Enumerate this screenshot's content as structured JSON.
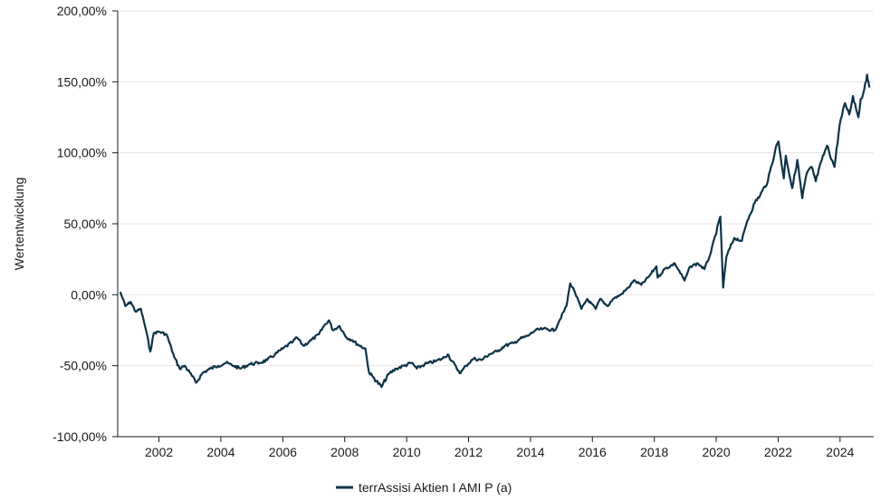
{
  "chart_data": {
    "type": "line",
    "title": "",
    "xlabel": "",
    "ylabel": "Wertentwicklung",
    "y_unit": "%",
    "ylim": [
      -100,
      200
    ],
    "xlim": [
      "2000-09-01",
      "2025-02-01"
    ],
    "y_ticks": [
      -100,
      -50,
      0,
      50,
      100,
      150,
      200
    ],
    "y_tick_labels": [
      "-100,00%",
      "-50,00%",
      "0,00%",
      "50,00%",
      "100,00%",
      "150,00%",
      "200,00%"
    ],
    "x_ticks": [
      "2002-01-01",
      "2004-01-01",
      "2006-01-01",
      "2008-01-01",
      "2010-01-01",
      "2012-01-01",
      "2014-01-01",
      "2016-01-01",
      "2018-01-01",
      "2020-01-01",
      "2022-01-01",
      "2024-01-01"
    ],
    "x_tick_labels": [
      "2002",
      "2004",
      "2006",
      "2008",
      "2010",
      "2012",
      "2014",
      "2016",
      "2018",
      "2020",
      "2022",
      "2024"
    ],
    "grid": "horizontal",
    "legend_position": "bottom-center",
    "series": [
      {
        "name": "terrAssisi Aktien I AMI P (a)",
        "color": "#0d3347",
        "points": [
          [
            "2000-10-01",
            2
          ],
          [
            "2000-12-01",
            -8
          ],
          [
            "2001-02-01",
            -5
          ],
          [
            "2001-04-01",
            -12
          ],
          [
            "2001-06-01",
            -10
          ],
          [
            "2001-08-01",
            -25
          ],
          [
            "2001-09-20",
            -40
          ],
          [
            "2001-11-01",
            -27
          ],
          [
            "2002-01-01",
            -26
          ],
          [
            "2002-04-01",
            -28
          ],
          [
            "2002-07-01",
            -44
          ],
          [
            "2002-09-01",
            -52
          ],
          [
            "2002-11-01",
            -50
          ],
          [
            "2003-01-01",
            -55
          ],
          [
            "2003-03-15",
            -62
          ],
          [
            "2003-06-01",
            -55
          ],
          [
            "2003-09-01",
            -52
          ],
          [
            "2003-12-01",
            -50
          ],
          [
            "2004-03-01",
            -48
          ],
          [
            "2004-06-01",
            -50
          ],
          [
            "2004-08-15",
            -52
          ],
          [
            "2004-12-01",
            -49
          ],
          [
            "2005-04-01",
            -48
          ],
          [
            "2005-07-01",
            -46
          ],
          [
            "2005-10-01",
            -42
          ],
          [
            "2006-01-01",
            -38
          ],
          [
            "2006-05-01",
            -33
          ],
          [
            "2006-06-15",
            -30
          ],
          [
            "2006-09-01",
            -36
          ],
          [
            "2006-12-01",
            -32
          ],
          [
            "2007-03-01",
            -28
          ],
          [
            "2007-05-01",
            -22
          ],
          [
            "2007-07-01",
            -18
          ],
          [
            "2007-08-15",
            -25
          ],
          [
            "2007-11-01",
            -22
          ],
          [
            "2008-01-20",
            -30
          ],
          [
            "2008-04-01",
            -32
          ],
          [
            "2008-06-01",
            -35
          ],
          [
            "2008-09-01",
            -38
          ],
          [
            "2008-10-15",
            -55
          ],
          [
            "2008-12-01",
            -58
          ],
          [
            "2009-03-09",
            -65
          ],
          [
            "2009-06-01",
            -56
          ],
          [
            "2009-09-01",
            -52
          ],
          [
            "2009-12-01",
            -50
          ],
          [
            "2010-03-01",
            -48
          ],
          [
            "2010-05-01",
            -52
          ],
          [
            "2010-08-01",
            -49
          ],
          [
            "2010-12-01",
            -47
          ],
          [
            "2011-03-01",
            -45
          ],
          [
            "2011-05-01",
            -42
          ],
          [
            "2011-08-15",
            -52
          ],
          [
            "2011-10-01",
            -55
          ],
          [
            "2011-12-01",
            -50
          ],
          [
            "2012-03-01",
            -45
          ],
          [
            "2012-06-01",
            -46
          ],
          [
            "2012-09-01",
            -42
          ],
          [
            "2012-12-01",
            -40
          ],
          [
            "2013-03-01",
            -36
          ],
          [
            "2013-06-20",
            -34
          ],
          [
            "2013-09-01",
            -31
          ],
          [
            "2013-12-01",
            -29
          ],
          [
            "2014-03-01",
            -25
          ],
          [
            "2014-06-01",
            -24
          ],
          [
            "2014-10-15",
            -25
          ],
          [
            "2014-12-01",
            -19
          ],
          [
            "2015-03-01",
            -8
          ],
          [
            "2015-04-15",
            8
          ],
          [
            "2015-06-01",
            3
          ],
          [
            "2015-08-25",
            -10
          ],
          [
            "2015-11-01",
            -3
          ],
          [
            "2016-02-10",
            -10
          ],
          [
            "2016-04-01",
            -3
          ],
          [
            "2016-06-27",
            -8
          ],
          [
            "2016-09-01",
            -3
          ],
          [
            "2016-12-01",
            0
          ],
          [
            "2017-03-01",
            5
          ],
          [
            "2017-05-01",
            10
          ],
          [
            "2017-08-01",
            7
          ],
          [
            "2017-11-01",
            13
          ],
          [
            "2018-01-25",
            20
          ],
          [
            "2018-02-09",
            12
          ],
          [
            "2018-05-01",
            18
          ],
          [
            "2018-09-01",
            22
          ],
          [
            "2018-12-24",
            10
          ],
          [
            "2019-03-01",
            20
          ],
          [
            "2019-06-01",
            22
          ],
          [
            "2019-08-15",
            18
          ],
          [
            "2019-11-01",
            30
          ],
          [
            "2020-02-19",
            55
          ],
          [
            "2020-03-23",
            5
          ],
          [
            "2020-05-01",
            27
          ],
          [
            "2020-08-01",
            40
          ],
          [
            "2020-10-30",
            38
          ],
          [
            "2021-01-01",
            52
          ],
          [
            "2021-04-01",
            65
          ],
          [
            "2021-06-01",
            70
          ],
          [
            "2021-09-01",
            80
          ],
          [
            "2021-12-01",
            103
          ],
          [
            "2022-01-05",
            108
          ],
          [
            "2022-03-08",
            82
          ],
          [
            "2022-04-01",
            98
          ],
          [
            "2022-06-16",
            75
          ],
          [
            "2022-08-15",
            95
          ],
          [
            "2022-10-12",
            68
          ],
          [
            "2022-12-01",
            85
          ],
          [
            "2023-02-01",
            90
          ],
          [
            "2023-03-20",
            80
          ],
          [
            "2023-06-01",
            95
          ],
          [
            "2023-07-31",
            105
          ],
          [
            "2023-10-27",
            90
          ],
          [
            "2023-12-28",
            120
          ],
          [
            "2024-03-01",
            135
          ],
          [
            "2024-04-19",
            127
          ],
          [
            "2024-06-01",
            140
          ],
          [
            "2024-08-05",
            125
          ],
          [
            "2024-09-01",
            138
          ],
          [
            "2024-10-01",
            142
          ],
          [
            "2024-11-15",
            155
          ],
          [
            "2024-12-01",
            150
          ],
          [
            "2024-12-15",
            146
          ]
        ]
      }
    ]
  }
}
